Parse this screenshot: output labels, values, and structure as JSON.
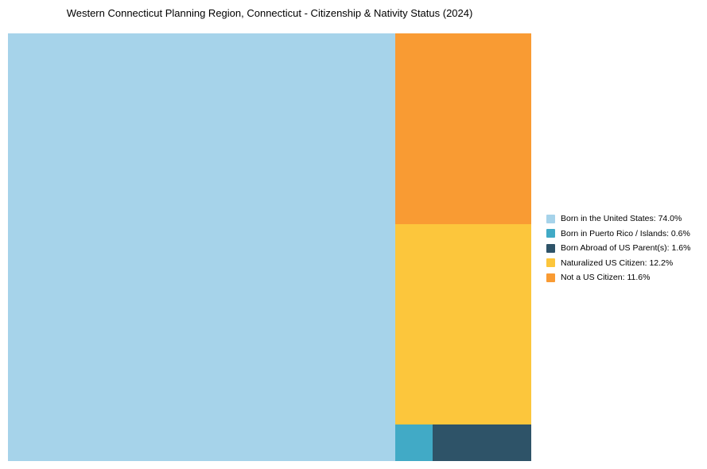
{
  "chart_data": {
    "type": "treemap",
    "title": "Western Connecticut Planning Region, Connecticut - Citizenship & Nativity Status (2024)",
    "units": "%",
    "legend_position": "right",
    "categories": [
      "Born in the United States",
      "Born in Puerto Rico / Islands",
      "Born Abroad of US Parent(s)",
      "Naturalized US Citizen",
      "Not a US Citizen"
    ],
    "values": [
      74.0,
      0.6,
      1.6,
      12.2,
      11.6
    ],
    "slices": [
      {
        "label": "Born in the United States",
        "value": 74.0,
        "color": "#A6D3EA",
        "legend_label": "Born in the United States: 74.0%"
      },
      {
        "label": "Born in Puerto Rico / Islands",
        "value": 0.6,
        "color": "#41AAC6",
        "legend_label": "Born in Puerto Rico / Islands: 0.6%"
      },
      {
        "label": "Born Abroad of US Parent(s)",
        "value": 1.6,
        "color": "#2E5368",
        "legend_label": "Born Abroad of US Parent(s): 1.6%"
      },
      {
        "label": "Naturalized US Citizen",
        "value": 12.2,
        "color": "#FCC63C",
        "legend_label": "Naturalized US Citizen: 12.2%"
      },
      {
        "label": "Not a US Citizen",
        "value": 11.6,
        "color": "#F99B33",
        "legend_label": "Not a US Citizen: 11.6%"
      }
    ]
  }
}
